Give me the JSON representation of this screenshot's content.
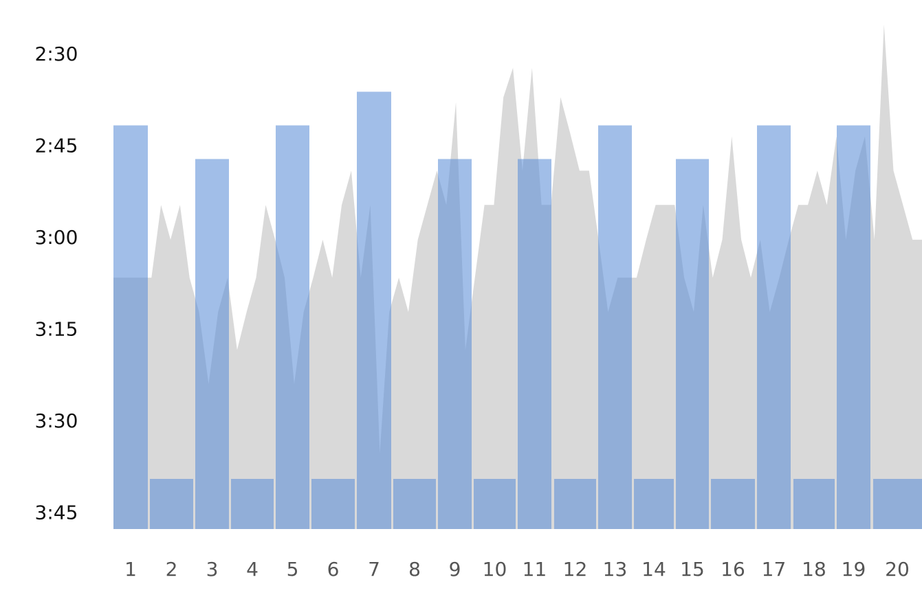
{
  "chart_data": {
    "type": "bar",
    "inverted_y": true,
    "ylim": [
      227.5,
      141
    ],
    "yticks": [
      {
        "value": 150,
        "label": "2:30"
      },
      {
        "value": 165,
        "label": "2:45"
      },
      {
        "value": 180,
        "label": "3:00"
      },
      {
        "value": 195,
        "label": "3:15"
      },
      {
        "value": 210,
        "label": "3:30"
      },
      {
        "value": 225,
        "label": "3:45"
      }
    ],
    "categories": [
      "1",
      "2",
      "3",
      "4",
      "5",
      "6",
      "7",
      "8",
      "9",
      "10",
      "11",
      "12",
      "13",
      "14",
      "15",
      "16",
      "17",
      "18",
      "19",
      "20"
    ],
    "bars": {
      "color": "#5d8fd7",
      "opacity": 0.58,
      "values": [
        161.5,
        219.3,
        167,
        219.3,
        161.5,
        219.3,
        156,
        219.3,
        167,
        219.3,
        167,
        219.3,
        161.5,
        219.3,
        167,
        219.3,
        161.5,
        219.3,
        161.5,
        219.3
      ]
    },
    "area": {
      "color": "#d9d9d9",
      "values": [
        186.4,
        186.4,
        186.4,
        186.4,
        186.4,
        174.5,
        180.2,
        174.5,
        186.4,
        192,
        203.8,
        192,
        186.4,
        198.2,
        192,
        186.4,
        174.5,
        180.2,
        186.4,
        203.8,
        192,
        186.4,
        180.2,
        186.4,
        174.5,
        168.9,
        186.4,
        174.5,
        215.1,
        192,
        186.4,
        192,
        180.2,
        174.5,
        168.9,
        174.5,
        157.7,
        198.2,
        186.4,
        174.5,
        174.5,
        156.9,
        152.1,
        168.9,
        152.1,
        174.5,
        174.5,
        156.9,
        162.7,
        168.9,
        168.9,
        180.2,
        192,
        186.4,
        186.4,
        186.4,
        180.2,
        174.5,
        174.5,
        174.5,
        186.4,
        192,
        174.5,
        186.4,
        180.2,
        163.3,
        180.2,
        186.4,
        180.2,
        192,
        186.4,
        180.2,
        174.5,
        174.5,
        168.9,
        174.5,
        163.3,
        180.2,
        168.9,
        163.3,
        180.2,
        145,
        168.9,
        174.5,
        180.2,
        180.2
      ]
    }
  }
}
